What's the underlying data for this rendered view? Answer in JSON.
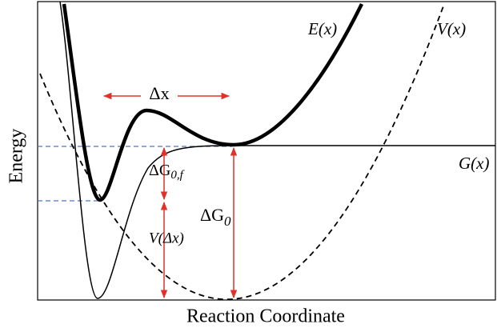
{
  "curves": {
    "E": "E(x)",
    "V": "V(x)",
    "G": "G(x)"
  },
  "annotations": {
    "dx": "Δx",
    "dG0f": {
      "main": "ΔG",
      "sub": "0,f"
    },
    "dG0": {
      "main": "ΔG",
      "sub": "0"
    },
    "Vdx": "V(Δx)"
  },
  "axes": {
    "y": "Energy",
    "x": "Reaction Coordinate"
  }
}
